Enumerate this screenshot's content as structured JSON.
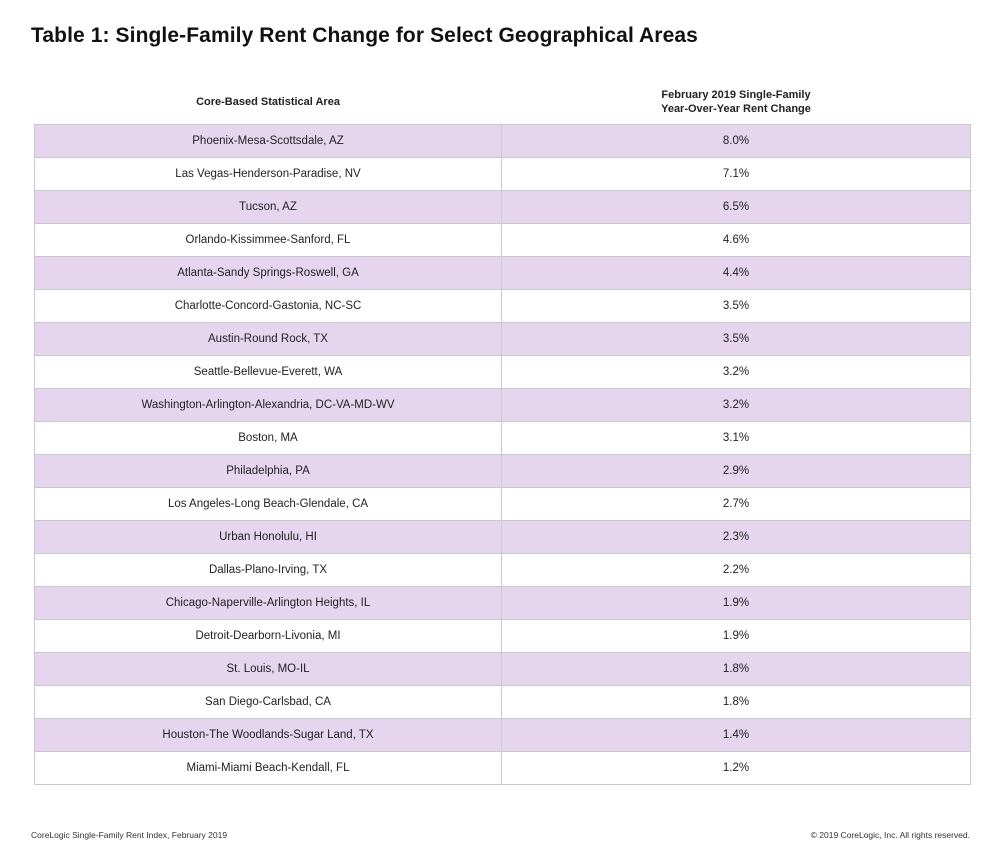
{
  "title": "Table 1: Single-Family Rent Change for Select Geographical Areas",
  "table": {
    "header_area": "Core-Based Statistical Area",
    "header_change_line1": "February 2019 Single-Family",
    "header_change_line2": "Year-Over-Year Rent Change"
  },
  "colors": {
    "row_shade": "#e5d5ee",
    "border": "#c9c9c9"
  },
  "chart_data": {
    "type": "table",
    "title": "Table 1: Single-Family Rent Change for Select Geographical Areas",
    "columns": [
      "Core-Based Statistical Area",
      "February 2019 Single-Family Year-Over-Year Rent Change"
    ],
    "rows": [
      {
        "area": "Phoenix-Mesa-Scottsdale, AZ",
        "change": "8.0%"
      },
      {
        "area": "Las Vegas-Henderson-Paradise, NV",
        "change": "7.1%"
      },
      {
        "area": "Tucson, AZ",
        "change": "6.5%"
      },
      {
        "area": "Orlando-Kissimmee-Sanford, FL",
        "change": "4.6%"
      },
      {
        "area": "Atlanta-Sandy Springs-Roswell, GA",
        "change": "4.4%"
      },
      {
        "area": "Charlotte-Concord-Gastonia, NC-SC",
        "change": "3.5%"
      },
      {
        "area": "Austin-Round Rock, TX",
        "change": "3.5%"
      },
      {
        "area": "Seattle-Bellevue-Everett, WA",
        "change": "3.2%"
      },
      {
        "area": "Washington-Arlington-Alexandria, DC-VA-MD-WV",
        "change": "3.2%"
      },
      {
        "area": "Boston, MA",
        "change": "3.1%"
      },
      {
        "area": "Philadelphia, PA",
        "change": "2.9%"
      },
      {
        "area": "Los Angeles-Long Beach-Glendale, CA",
        "change": "2.7%"
      },
      {
        "area": "Urban Honolulu, HI",
        "change": "2.3%"
      },
      {
        "area": "Dallas-Plano-Irving, TX",
        "change": "2.2%"
      },
      {
        "area": "Chicago-Naperville-Arlington Heights, IL",
        "change": "1.9%"
      },
      {
        "area": "Detroit-Dearborn-Livonia, MI",
        "change": "1.9%"
      },
      {
        "area": "St. Louis, MO-IL",
        "change": "1.8%"
      },
      {
        "area": "San Diego-Carlsbad, CA",
        "change": "1.8%"
      },
      {
        "area": "Houston-The Woodlands-Sugar Land, TX",
        "change": "1.4%"
      },
      {
        "area": "Miami-Miami Beach-Kendall, FL",
        "change": "1.2%"
      }
    ]
  },
  "footer": {
    "source": "CoreLogic Single-Family Rent Index, February 2019",
    "copyright": "© 2019 CoreLogic, Inc. All rights reserved."
  }
}
